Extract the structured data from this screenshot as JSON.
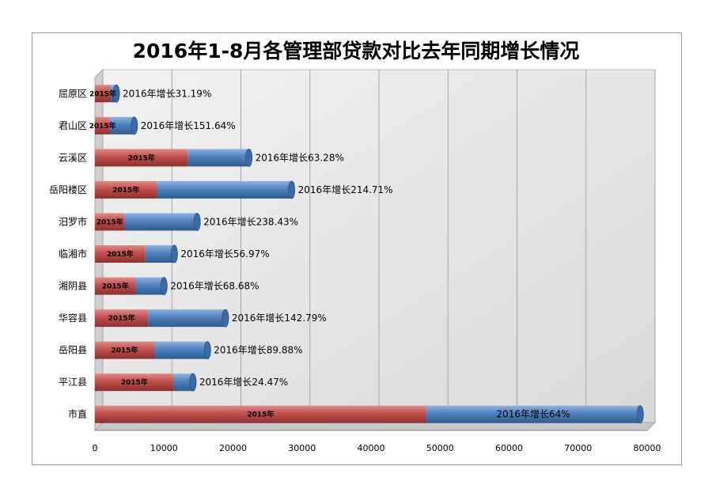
{
  "chart_data": {
    "type": "bar",
    "orientation": "horizontal",
    "stacked": true,
    "title": "2016年1-8月各管理部贷款对比去年同期增长情况",
    "categories": [
      "屈原区",
      "君山区",
      "云溪区",
      "岳阳楼区",
      "汨罗市",
      "临湘市",
      "湘阴县",
      "华容县",
      "岳阳县",
      "平江县",
      "市直"
    ],
    "series": [
      {
        "name": "2015年",
        "color": "#c0504d",
        "values": [
          2300,
          2200,
          13500,
          9000,
          4300,
          7300,
          5900,
          7700,
          8600,
          11400,
          48000
        ],
        "point_labels": [
          "2015年",
          "2015年",
          "2015年",
          "2015年",
          "2015年",
          "2015年",
          "2015年",
          "2015年",
          "2015年",
          "2015年",
          "2015年"
        ]
      },
      {
        "name": "2016年",
        "color": "#4f81bd",
        "values": [
          800,
          3500,
          8800,
          19500,
          10500,
          4200,
          4100,
          11200,
          7700,
          2800,
          31000
        ],
        "point_labels": [
          "2016年增长31.19%",
          "2016年增长151.64%",
          "2016年增长63.28%",
          "2016年增长214.71%",
          "2016年增长238.43%",
          "2016年增长56.97%",
          "2016年增长68.68%",
          "2016年增长142.79%",
          "2016年增长89.88%",
          "2016年增长24.47%",
          "2016年增长64%"
        ]
      }
    ],
    "xlim": [
      0,
      80000
    ],
    "xticks": [
      "0",
      "10000",
      "20000",
      "30000",
      "40000",
      "50000",
      "60000",
      "70000",
      "80000"
    ],
    "grid": true,
    "legend": false
  }
}
